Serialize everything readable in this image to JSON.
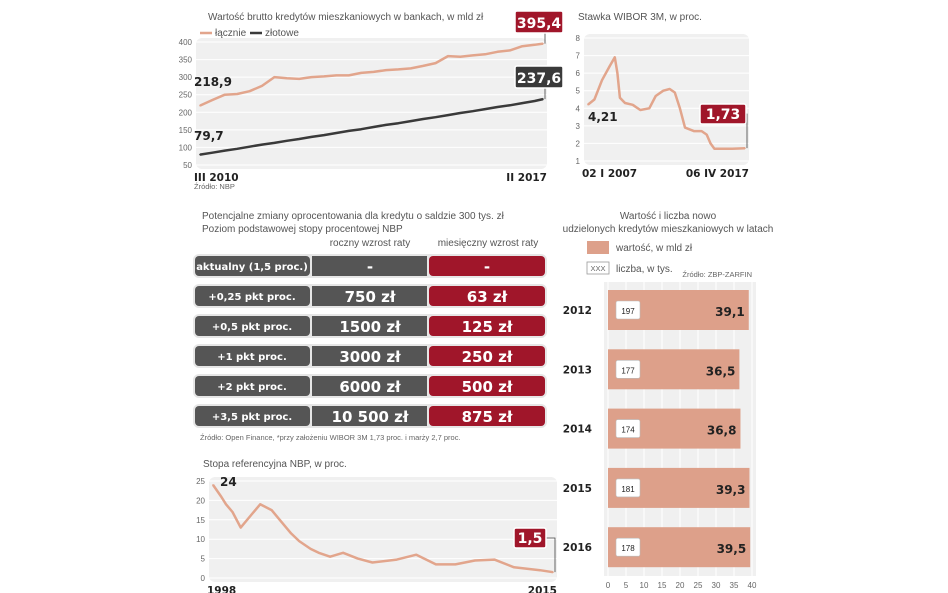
{
  "colors": {
    "salmon": "#e2a58c",
    "dark": "#3a3a3a",
    "red": "#a0162a",
    "gray": "#555555",
    "bar": "#dda08a",
    "bg": "#f0f0f0"
  },
  "chart_data": [
    {
      "type": "line",
      "title": "Wartość brutto kredytów mieszkaniowych w bankach, w mld zł",
      "ylim": [
        50,
        400
      ],
      "yticks": [
        50,
        100,
        150,
        200,
        250,
        300,
        350,
        400
      ],
      "grid": true,
      "legend": "top-left",
      "x_labels": [
        "III 2010",
        "II 2017"
      ],
      "source": "Źródło: NBP",
      "x": [
        "2010-03",
        "2010-06",
        "2010-09",
        "2010-12",
        "2011-03",
        "2011-06",
        "2011-09",
        "2011-12",
        "2012-03",
        "2012-06",
        "2012-09",
        "2012-12",
        "2013-03",
        "2013-06",
        "2013-09",
        "2013-12",
        "2014-03",
        "2014-06",
        "2014-09",
        "2014-12",
        "2015-03",
        "2015-06",
        "2015-09",
        "2015-12",
        "2016-03",
        "2016-06",
        "2016-09",
        "2016-12",
        "2017-02"
      ],
      "series": [
        {
          "name": "łącznie",
          "color": "#e2a58c",
          "start_label": "218,9",
          "end_label": "395,4",
          "values": [
            218.9,
            235,
            250,
            252,
            260,
            275,
            300,
            297,
            295,
            300,
            302,
            305,
            305,
            312,
            315,
            320,
            322,
            325,
            332,
            340,
            360,
            358,
            362,
            365,
            372,
            376,
            388,
            392,
            395.4
          ]
        },
        {
          "name": "złotowe",
          "color": "#3a3a3a",
          "start_label": "79,7",
          "end_label": "237,6",
          "values": [
            79.7,
            85,
            91,
            96,
            102,
            108,
            113,
            119,
            124,
            130,
            135,
            141,
            147,
            152,
            158,
            164,
            169,
            175,
            181,
            186,
            192,
            198,
            203,
            209,
            215,
            220,
            226,
            232,
            237.6
          ]
        }
      ]
    },
    {
      "type": "line",
      "title": "Stawka WIBOR 3M, w proc.",
      "ylim": [
        1,
        8
      ],
      "yticks": [
        1,
        2,
        3,
        4,
        5,
        6,
        7,
        8
      ],
      "grid": true,
      "x_labels": [
        "02 I 2007",
        "06 IV 2017"
      ],
      "x": [
        "2007-01",
        "2007-06",
        "2007-12",
        "2008-06",
        "2008-10",
        "2008-12",
        "2009-02",
        "2009-06",
        "2009-12",
        "2010-06",
        "2011-01",
        "2011-06",
        "2011-12",
        "2012-05",
        "2012-09",
        "2013-01",
        "2013-05",
        "2013-12",
        "2014-06",
        "2014-10",
        "2015-01",
        "2015-04",
        "2016-06",
        "2017-04"
      ],
      "series": [
        {
          "color": "#e2a58c",
          "start_label": "4,21",
          "end_label": "1,73",
          "values": [
            4.21,
            4.5,
            5.6,
            6.4,
            6.9,
            6.0,
            4.6,
            4.3,
            4.2,
            3.9,
            4.0,
            4.7,
            5.0,
            5.1,
            4.9,
            4.0,
            2.9,
            2.7,
            2.7,
            2.5,
            2.0,
            1.7,
            1.7,
            1.73
          ]
        }
      ]
    },
    {
      "type": "table",
      "title": "Potencjalne zmiany oprocentowania dla kredytu o saldzie 300 tys. zł",
      "subtitle": "Poziom podstawowej stopy procentowej NBP",
      "columns": [
        "roczny wzrost raty",
        "miesięczny wzrost raty"
      ],
      "rows": [
        {
          "label": "aktualny (1,5 proc.)",
          "annual": "-",
          "monthly": "-"
        },
        {
          "label": "+0,25 pkt proc.",
          "annual": "750 zł",
          "monthly": "63 zł"
        },
        {
          "label": "+0,5 pkt proc.",
          "annual": "1500 zł",
          "monthly": "125 zł"
        },
        {
          "label": "+1 pkt proc.",
          "annual": "3000 zł",
          "monthly": "250 zł"
        },
        {
          "label": "+2 pkt proc.",
          "annual": "6000 zł",
          "monthly": "500 zł"
        },
        {
          "label": "+3,5 pkt proc.",
          "annual": "10 500 zł",
          "monthly": "875 zł"
        }
      ],
      "source": "Źródło: Open Finance, *przy założeniu WIBOR 3M 1,73 proc. i marży 2,7 proc."
    },
    {
      "type": "line",
      "title": "Stopa referencyjna NBP, w proc.",
      "ylim": [
        0,
        25
      ],
      "yticks": [
        0,
        5,
        10,
        15,
        20,
        25
      ],
      "grid": true,
      "x_labels": [
        "1998",
        "2015"
      ],
      "x": [
        "1998-01",
        "1998-06",
        "1998-09",
        "1999-01",
        "1999-06",
        "2000-01",
        "2000-06",
        "2001-01",
        "2001-06",
        "2002-01",
        "2002-06",
        "2003-01",
        "2003-06",
        "2004-01",
        "2004-09",
        "2005-06",
        "2006-03",
        "2007-06",
        "2008-06",
        "2009-06",
        "2010-06",
        "2011-06",
        "2012-06",
        "2013-06",
        "2014-10",
        "2015-06"
      ],
      "series": [
        {
          "color": "#e2a58c",
          "start_label": "24",
          "end_label": "1,5",
          "values": [
            24,
            21,
            19,
            17,
            13,
            16.5,
            19,
            17.5,
            15,
            11.5,
            9.5,
            7.5,
            6.5,
            5.5,
            6.5,
            5,
            4,
            4.75,
            6,
            3.5,
            3.5,
            4.5,
            4.75,
            2.75,
            2.0,
            1.5
          ]
        }
      ]
    },
    {
      "type": "bar",
      "orientation": "horizontal",
      "title": "Wartość i liczba nowo udzielonych kredytów mieszkaniowych w latach",
      "legend": [
        {
          "label": "wartość, w mld zł"
        },
        {
          "label": "liczba, w tys.",
          "swatch": "XXX"
        }
      ],
      "source": "Źródło: ZBP-ZARFIN",
      "categories": [
        "2012",
        "2013",
        "2014",
        "2015",
        "2016"
      ],
      "values": [
        39.1,
        36.5,
        36.8,
        39.3,
        39.5
      ],
      "value_labels": [
        "39,1",
        "36,5",
        "36,8",
        "39,3",
        "39,5"
      ],
      "counts": [
        "197",
        "177",
        "174",
        "181",
        "178"
      ],
      "xlim": [
        0,
        40
      ],
      "xticks": [
        0,
        5,
        10,
        15,
        20,
        25,
        30,
        35,
        40
      ]
    }
  ]
}
